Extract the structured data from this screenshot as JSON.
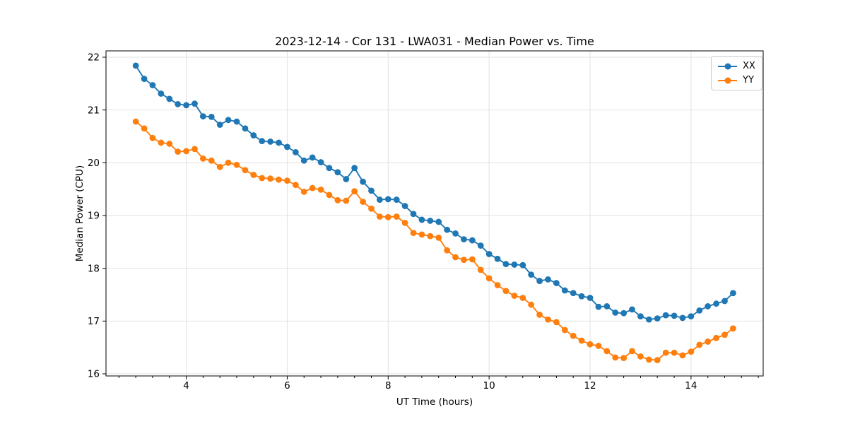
{
  "chart_data": {
    "type": "line",
    "title": "2023-12-14 - Cor 131 - LWA031 - Median Power vs. Time",
    "xlabel": "UT Time (hours)",
    "ylabel": "Median Power (CPU)",
    "xlim": [
      2.41,
      15.43
    ],
    "ylim": [
      15.96,
      22.12
    ],
    "xticks": [
      4,
      6,
      8,
      10,
      12,
      14
    ],
    "yticks": [
      16,
      17,
      18,
      19,
      20,
      21,
      22
    ],
    "x_minor_tick_step": 0.3333,
    "grid": true,
    "legend_position": "upper right",
    "x": [
      3.0,
      3.167,
      3.333,
      3.5,
      3.667,
      3.833,
      4.0,
      4.167,
      4.333,
      4.5,
      4.667,
      4.833,
      5.0,
      5.167,
      5.333,
      5.5,
      5.667,
      5.833,
      6.0,
      6.167,
      6.333,
      6.5,
      6.667,
      6.833,
      7.0,
      7.167,
      7.333,
      7.5,
      7.667,
      7.833,
      8.0,
      8.167,
      8.333,
      8.5,
      8.667,
      8.833,
      9.0,
      9.167,
      9.333,
      9.5,
      9.667,
      9.833,
      10.0,
      10.167,
      10.333,
      10.5,
      10.667,
      10.833,
      11.0,
      11.167,
      11.333,
      11.5,
      11.667,
      11.833,
      12.0,
      12.167,
      12.333,
      12.5,
      12.667,
      12.833,
      13.0,
      13.167,
      13.333,
      13.5,
      13.667,
      13.833,
      14.0,
      14.167,
      14.333,
      14.5,
      14.667,
      14.833
    ],
    "series": [
      {
        "name": "XX",
        "color": "#1f77b4",
        "marker": "circle",
        "values": [
          21.84,
          21.59,
          21.47,
          21.31,
          21.21,
          21.11,
          21.09,
          21.12,
          20.88,
          20.87,
          20.72,
          20.81,
          20.78,
          20.65,
          20.52,
          20.41,
          20.4,
          20.38,
          20.3,
          20.2,
          20.04,
          20.1,
          20.01,
          19.9,
          19.82,
          19.69,
          19.9,
          19.64,
          19.47,
          19.3,
          19.31,
          19.3,
          19.18,
          19.03,
          18.92,
          18.9,
          18.88,
          18.73,
          18.66,
          18.55,
          18.53,
          18.43,
          18.27,
          18.18,
          18.08,
          18.07,
          18.06,
          17.88,
          17.76,
          17.79,
          17.72,
          17.58,
          17.53,
          17.47,
          17.44,
          17.27,
          17.28,
          17.16,
          17.15,
          17.22,
          17.09,
          17.03,
          17.05,
          17.11,
          17.1,
          17.06,
          17.09,
          17.2,
          17.28,
          17.33,
          17.38,
          17.53
        ]
      },
      {
        "name": "YY",
        "color": "#ff7f0e",
        "marker": "circle",
        "values": [
          20.78,
          20.65,
          20.47,
          20.38,
          20.36,
          20.21,
          20.22,
          20.26,
          20.08,
          20.04,
          19.92,
          20.0,
          19.96,
          19.86,
          19.77,
          19.71,
          19.7,
          19.68,
          19.66,
          19.58,
          19.45,
          19.52,
          19.49,
          19.39,
          19.29,
          19.28,
          19.46,
          19.26,
          19.13,
          18.98,
          18.97,
          18.98,
          18.86,
          18.67,
          18.64,
          18.61,
          18.58,
          18.34,
          18.21,
          18.16,
          18.17,
          17.97,
          17.81,
          17.68,
          17.57,
          17.48,
          17.44,
          17.31,
          17.12,
          17.03,
          16.98,
          16.83,
          16.72,
          16.63,
          16.56,
          16.53,
          16.43,
          16.31,
          16.3,
          16.43,
          16.33,
          16.27,
          16.26,
          16.4,
          16.4,
          16.35,
          16.42,
          16.55,
          16.61,
          16.68,
          16.74,
          16.86
        ]
      }
    ]
  }
}
